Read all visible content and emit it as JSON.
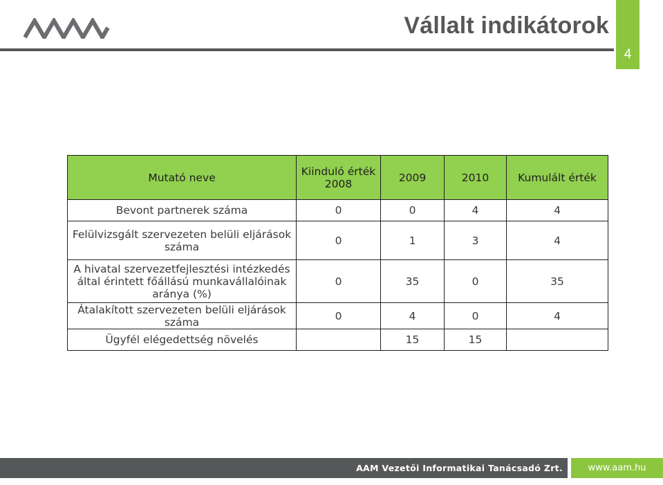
{
  "header": {
    "title": "Vállalt indikátorok",
    "page_number": "4",
    "logo_icon": "aam-logo-icon"
  },
  "table": {
    "headers": [
      "Mutató neve",
      "Kiinduló érték 2008",
      "2009",
      "2010",
      "Kumulált érték"
    ],
    "rows": [
      [
        "Bevont partnerek száma",
        "0",
        "0",
        "4",
        "4"
      ],
      [
        "Felülvizsgált szervezeten belüli eljárások száma",
        "0",
        "1",
        "3",
        "4"
      ],
      [
        "A hivatal szervezetfejlesztési intézkedés által érintett főállású munkavállalóinak aránya (%)",
        "0",
        "35",
        "0",
        "35"
      ],
      [
        "Átalakított szervezeten belüli eljárások száma",
        "0",
        "4",
        "0",
        "4"
      ],
      [
        "Ügyfél elégedettség növelés",
        "",
        "15",
        "15",
        ""
      ]
    ]
  },
  "footer": {
    "company": "AAM Vezetői Informatikai Tanácsadó Zrt.",
    "url": "www.aam.hu"
  },
  "colors": {
    "accent_green": "#8cc63f",
    "header_cell_green": "#92d050",
    "dark_gray": "#555759"
  }
}
